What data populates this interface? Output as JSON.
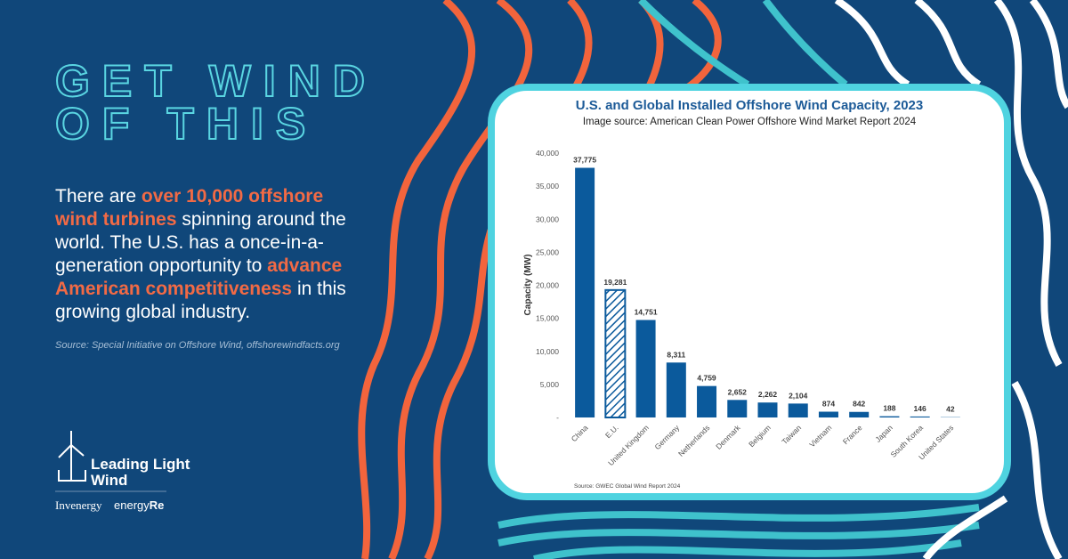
{
  "headline": [
    "GET WIND",
    "OF THIS"
  ],
  "body": {
    "segments": [
      {
        "text": "There are "
      },
      {
        "text": "over 10,000 offshore wind turbines",
        "highlight": true
      },
      {
        "text": " spinning around the world. The U.S. has a once-in-a-generation opportunity to "
      },
      {
        "text": "advance American competitiveness",
        "highlight": true
      },
      {
        "text": " in this growing global industry."
      }
    ]
  },
  "source": "Source: Special Initiative on Offshore Wind, offshorewindfacts.org",
  "logo": {
    "name_line1": "Leading Light",
    "name_line2": "Wind",
    "partner1": "Invenergy",
    "partner2_a": "energy",
    "partner2_b": "Re"
  },
  "chart_data": {
    "type": "bar",
    "title": "U.S. and Global Installed Offshore Wind Capacity, 2023",
    "subtitle": "Image source: American Clean Power Offshore Wind Market Report 2024",
    "y_label": "Capacity (MW)",
    "note": "Source: GWEC Global Wind Report 2024",
    "categories": [
      "China",
      "E.U.",
      "United Kingdom",
      "Germany",
      "Netherlands",
      "Denmark",
      "Belgium",
      "Taiwan",
      "Vietnam",
      "France",
      "Japan",
      "South Korea",
      "United States"
    ],
    "values": [
      37775,
      19281,
      14751,
      8311,
      4759,
      2652,
      2262,
      2104,
      874,
      842,
      188,
      146,
      42
    ],
    "value_labels": [
      "37,775",
      "19,281",
      "14,751",
      "8,311",
      "4,759",
      "2,652",
      "2,262",
      "2,104",
      "874",
      "842",
      "188",
      "146",
      "42"
    ],
    "hatched_category": "E.U.",
    "color": "#0b5a9c",
    "ylim": [
      0,
      40000
    ],
    "yticks": [
      {
        "value": 0,
        "label": "-"
      },
      {
        "value": 5000,
        "label": "5,000"
      },
      {
        "value": 10000,
        "label": "10,000"
      },
      {
        "value": 15000,
        "label": "15,000"
      },
      {
        "value": 20000,
        "label": "20,000"
      },
      {
        "value": 25000,
        "label": "25,000"
      },
      {
        "value": 30000,
        "label": "30,000"
      },
      {
        "value": 35000,
        "label": "35,000"
      },
      {
        "value": 40000,
        "label": "40,000"
      }
    ],
    "grid": false
  }
}
